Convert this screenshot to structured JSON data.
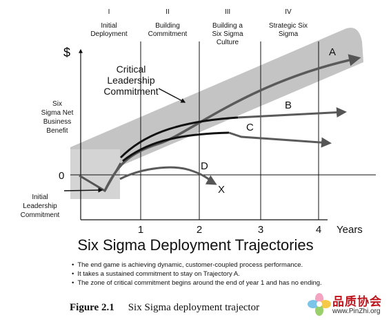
{
  "phases": [
    {
      "numeral": "I",
      "lines": [
        "Initial",
        "Deployment"
      ]
    },
    {
      "numeral": "II",
      "lines": [
        "Building",
        "Commitment"
      ]
    },
    {
      "numeral": "III",
      "lines": [
        "Building a",
        "Six Sigma",
        "Culture"
      ]
    },
    {
      "numeral": "IV",
      "lines": [
        "Strategic Six",
        "Sigma"
      ]
    }
  ],
  "y_axis": {
    "symbol": "$",
    "label_lines": [
      "Six",
      "Sigma Net",
      "Business",
      "Benefit"
    ],
    "zero_label": "0"
  },
  "x_axis": {
    "ticks": [
      "1",
      "2",
      "3",
      "4"
    ],
    "label": "Years"
  },
  "annotations": {
    "critical_lines": [
      "Critical",
      "Leadership",
      "Commitment"
    ],
    "initial_lines": [
      "Initial",
      "Leadership",
      "Commitment"
    ]
  },
  "trajectories": [
    {
      "id": "A",
      "color": "#555555"
    },
    {
      "id": "B",
      "color": "#555555"
    },
    {
      "id": "C",
      "color": "#555555"
    },
    {
      "id": "D",
      "color": "#555555"
    }
  ],
  "fail_label": "X",
  "title": "Six Sigma Deployment Trajectories",
  "bullets": [
    "The end game is achieving dynamic, customer-coupled process performance.",
    "It takes a sustained commitment to stay on Trajectory A.",
    "The zone of critical commitment begins around the end of year 1 and has no ending."
  ],
  "caption": {
    "figure": "Figure 2.1",
    "text": "Six Sigma deployment trajector"
  },
  "watermark": {
    "name": "品质协会",
    "url": "www.PinZhi.org"
  }
}
